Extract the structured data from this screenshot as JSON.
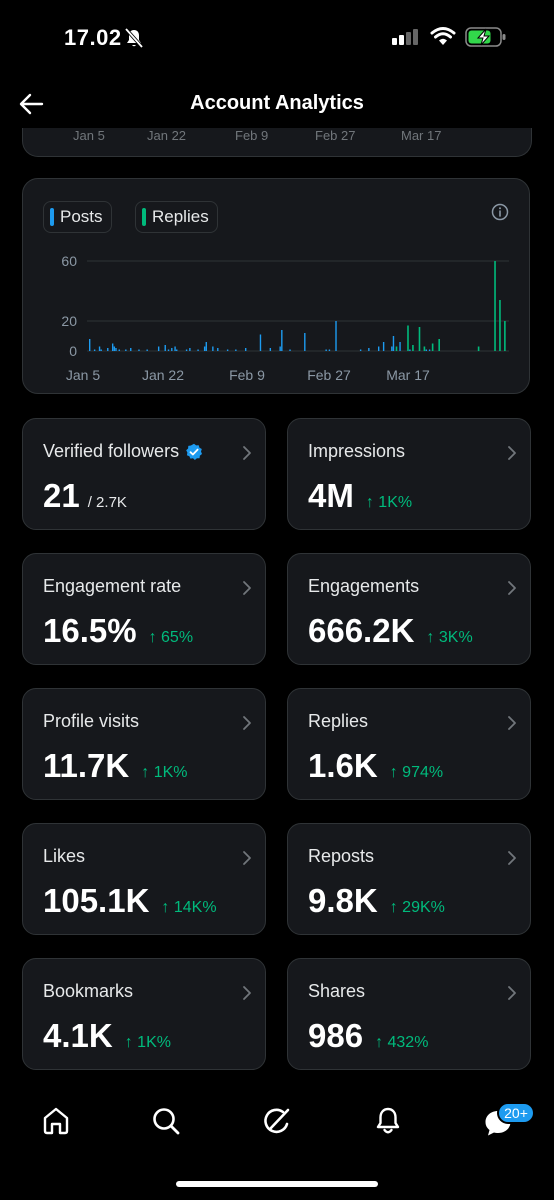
{
  "status_bar": {
    "time": "17.02"
  },
  "header": {
    "title": "Account Analytics"
  },
  "prev_chart_ticks": [
    "Jan 5",
    "Jan 22",
    "Feb 9",
    "Feb 27",
    "Mar 17"
  ],
  "chart_card": {
    "legend": [
      {
        "label": "Posts",
        "color": "#1d9bf0"
      },
      {
        "label": "Replies",
        "color": "#00ba7c"
      }
    ]
  },
  "chart_data": {
    "type": "bar",
    "x_ticks": [
      "Jan 5",
      "Jan 22",
      "Feb 9",
      "Feb 27",
      "Mar 17"
    ],
    "y_ticks": [
      "60",
      "20",
      "0"
    ],
    "ylim": [
      0,
      60
    ],
    "grid": true,
    "series": [
      {
        "name": "Posts",
        "color": "#1d9bf0",
        "values": [
          8,
          0,
          0,
          1,
          0,
          0,
          3,
          1,
          0,
          0,
          0,
          2,
          0,
          0,
          5,
          3,
          2,
          0,
          1,
          0,
          0,
          0,
          1,
          0,
          0,
          2,
          0,
          0,
          0,
          0,
          1,
          0,
          0,
          0,
          0,
          1,
          0,
          0,
          0,
          0,
          0,
          0,
          3,
          0,
          0,
          0,
          4,
          0,
          1,
          0,
          2,
          0,
          3,
          1,
          0,
          0,
          0,
          0,
          0,
          1,
          0,
          2,
          0,
          0,
          0,
          0,
          1,
          0,
          0,
          0,
          3,
          6,
          0,
          0,
          0,
          3,
          0,
          0,
          2,
          0,
          0,
          0,
          0,
          0,
          1,
          0,
          0,
          0,
          0,
          1,
          0,
          0,
          0,
          0,
          0,
          2,
          0,
          0,
          0,
          0,
          0,
          0,
          0,
          0,
          11,
          0,
          0,
          0,
          0,
          0,
          2,
          0,
          0,
          0,
          0,
          0,
          3,
          14,
          0,
          0,
          0,
          0,
          1,
          0,
          0,
          0,
          0,
          0,
          0,
          0,
          0,
          12,
          0,
          0,
          0,
          0,
          0,
          0,
          0,
          0,
          0,
          0,
          0,
          0,
          1,
          0,
          1,
          0,
          0,
          0,
          20,
          0,
          0,
          0,
          0,
          0,
          0,
          0,
          0,
          0,
          0,
          0,
          0,
          0,
          0,
          1,
          0,
          0,
          0,
          0,
          2,
          0,
          0,
          0,
          0,
          0,
          3,
          0,
          0,
          6,
          0,
          0,
          0,
          0,
          3,
          10,
          0,
          0,
          0,
          6,
          0,
          0,
          0,
          0,
          0,
          1,
          0,
          0,
          0,
          0,
          0,
          0,
          0,
          0,
          0,
          1,
          0,
          1,
          0,
          0,
          0,
          0,
          0,
          0,
          0,
          0,
          0,
          0,
          0,
          0,
          0,
          0,
          0,
          0,
          0,
          0,
          0,
          0,
          0,
          0,
          0,
          0,
          0,
          0,
          0,
          0,
          0,
          0,
          0,
          0,
          0,
          0,
          0,
          0,
          0
        ]
      },
      {
        "name": "Replies",
        "color": "#00ba7c",
        "values": [
          0,
          0,
          0,
          0,
          0,
          0,
          0,
          0,
          0,
          0,
          0,
          0,
          0,
          0,
          0,
          0,
          0,
          0,
          0,
          0,
          0,
          0,
          0,
          0,
          0,
          0,
          0,
          0,
          0,
          0,
          0,
          0,
          0,
          0,
          0,
          0,
          0,
          0,
          0,
          0,
          0,
          0,
          0,
          0,
          0,
          0,
          0,
          0,
          0,
          0,
          0,
          0,
          0,
          0,
          0,
          0,
          0,
          0,
          0,
          0,
          0,
          0,
          0,
          0,
          0,
          0,
          0,
          0,
          0,
          0,
          0,
          0,
          0,
          0,
          0,
          0,
          0,
          0,
          0,
          0,
          0,
          0,
          0,
          0,
          0,
          0,
          0,
          0,
          0,
          0,
          0,
          0,
          0,
          0,
          0,
          0,
          0,
          0,
          0,
          0,
          0,
          0,
          0,
          0,
          0,
          0,
          0,
          0,
          0,
          0,
          0,
          0,
          0,
          0,
          0,
          0,
          0,
          0,
          0,
          0,
          0,
          0,
          0,
          0,
          0,
          0,
          0,
          0,
          0,
          0,
          0,
          0,
          0,
          0,
          0,
          0,
          0,
          0,
          0,
          0,
          0,
          0,
          0,
          0,
          0,
          0,
          0,
          0,
          0,
          0,
          0,
          0,
          0,
          0,
          0,
          0,
          0,
          0,
          0,
          0,
          0,
          0,
          0,
          0,
          0,
          0,
          0,
          0,
          0,
          0,
          0,
          0,
          0,
          0,
          0,
          0,
          0,
          0,
          0,
          0,
          0,
          0,
          0,
          0,
          0,
          0,
          0,
          0,
          0,
          0,
          0,
          0,
          0,
          0,
          0,
          0,
          0,
          0,
          0,
          0,
          0,
          0,
          0,
          0,
          0,
          0,
          0,
          0,
          0,
          0,
          0,
          0,
          0,
          0,
          0,
          0,
          0,
          0,
          0,
          0,
          0,
          0,
          0,
          0,
          0,
          0,
          0,
          0,
          0,
          0,
          0,
          0,
          0,
          0,
          0,
          0,
          0,
          0,
          0,
          0,
          0,
          0,
          0,
          0,
          0,
          0,
          0,
          0,
          0,
          0,
          0,
          0,
          0,
          0,
          0,
          0,
          0,
          0,
          0,
          0,
          0,
          0,
          0,
          0,
          0,
          0,
          0,
          0
        ]
      }
    ],
    "replies_spikes": [
      {
        "day_index": 188,
        "value": 3
      },
      {
        "day_index": 195,
        "value": 17
      },
      {
        "day_index": 198,
        "value": 4
      },
      {
        "day_index": 202,
        "value": 16
      },
      {
        "day_index": 205,
        "value": 3
      },
      {
        "day_index": 210,
        "value": 5
      },
      {
        "day_index": 214,
        "value": 8
      },
      {
        "day_index": 238,
        "value": 3
      },
      {
        "day_index": 248,
        "value": 60
      },
      {
        "day_index": 251,
        "value": 34
      },
      {
        "day_index": 254,
        "value": 20
      }
    ],
    "num_days": 257
  },
  "stats": [
    {
      "label": "Verified followers",
      "value": "21",
      "sub": "/ 2.7K",
      "change": "",
      "verified": true
    },
    {
      "label": "Impressions",
      "value": "4M",
      "sub": "",
      "change": "↑ 1K%"
    },
    {
      "label": "Engagement rate",
      "value": "16.5%",
      "sub": "",
      "change": "↑ 65%"
    },
    {
      "label": "Engagements",
      "value": "666.2K",
      "sub": "",
      "change": "↑ 3K%"
    },
    {
      "label": "Profile visits",
      "value": "11.7K",
      "sub": "",
      "change": "↑ 1K%"
    },
    {
      "label": "Replies",
      "value": "1.6K",
      "sub": "",
      "change": "↑ 974%"
    },
    {
      "label": "Likes",
      "value": "105.1K",
      "sub": "",
      "change": "↑ 14K%"
    },
    {
      "label": "Reposts",
      "value": "9.8K",
      "sub": "",
      "change": "↑ 29K%"
    },
    {
      "label": "Bookmarks",
      "value": "4.1K",
      "sub": "",
      "change": "↑ 1K%"
    },
    {
      "label": "Shares",
      "value": "986",
      "sub": "",
      "change": "↑ 432%"
    }
  ],
  "tab_bar": {
    "messages_badge": "20+"
  },
  "colors": {
    "accent": "#1d9bf0",
    "positive": "#00ba7c",
    "card": "#16181c",
    "border": "#2f3336"
  }
}
